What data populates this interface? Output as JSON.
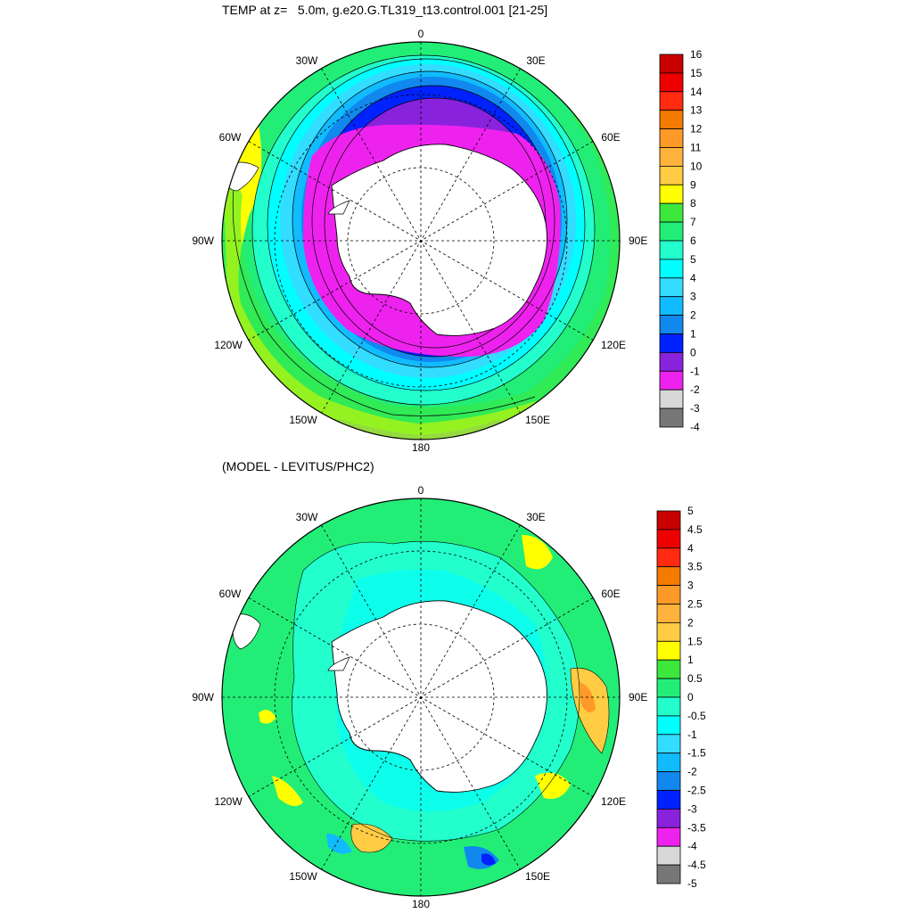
{
  "panels": [
    {
      "title": "TEMP at z=   5.0m, g.e20.G.TL319_t13.control.001 [21-25]",
      "lon_labels": {
        "top": "0",
        "tl": "30W",
        "tr": "30E",
        "ul": "60W",
        "ur": "60E",
        "ml": "90W",
        "mr": "90E",
        "ll": "120W",
        "lr": "120E",
        "bl": "150W",
        "br": "150E",
        "bottom": "180"
      },
      "colorbar": {
        "labels": [
          "16",
          "15",
          "14",
          "13",
          "12",
          "11",
          "10",
          "9",
          "8",
          "7",
          "6",
          "5",
          "4",
          "3",
          "2",
          "1",
          "0",
          "-1",
          "-2",
          "-3",
          "-4"
        ],
        "colors": [
          "#c80000",
          "#ee0000",
          "#ff2a10",
          "#f47a00",
          "#ff9a28",
          "#ffb23c",
          "#ffcc44",
          "#ffff00",
          "#3ce83c",
          "#22ee77",
          "#22ffcc",
          "#00ffff",
          "#33ddff",
          "#11bbff",
          "#1188ee",
          "#0022ff",
          "#8822dd",
          "#ee22ee",
          "#d8d8d8",
          "#777777"
        ]
      }
    },
    {
      "title": "(MODEL - LEVITUS/PHC2)",
      "lon_labels": {
        "top": "0",
        "tl": "30W",
        "tr": "30E",
        "ul": "60W",
        "ur": "60E",
        "ml": "90W",
        "mr": "90E",
        "ll": "120W",
        "lr": "120E",
        "bl": "150W",
        "br": "150E",
        "bottom": "180"
      },
      "colorbar": {
        "labels": [
          "5",
          "4.5",
          "4",
          "3.5",
          "3",
          "2.5",
          "2",
          "1.5",
          "1",
          "0.5",
          "0",
          "-0.5",
          "-1",
          "-1.5",
          "-2",
          "-2.5",
          "-3",
          "-3.5",
          "-4",
          "-4.5",
          "-5"
        ],
        "colors": [
          "#c80000",
          "#ee0000",
          "#ff2a10",
          "#f47a00",
          "#ff9a28",
          "#ffb23c",
          "#ffcc44",
          "#ffff00",
          "#3ce83c",
          "#22ee77",
          "#22ffcc",
          "#00ffff",
          "#33ddff",
          "#11bbff",
          "#1188ee",
          "#0022ff",
          "#8822dd",
          "#ee22ee",
          "#d8d8d8",
          "#777777"
        ]
      }
    }
  ]
}
